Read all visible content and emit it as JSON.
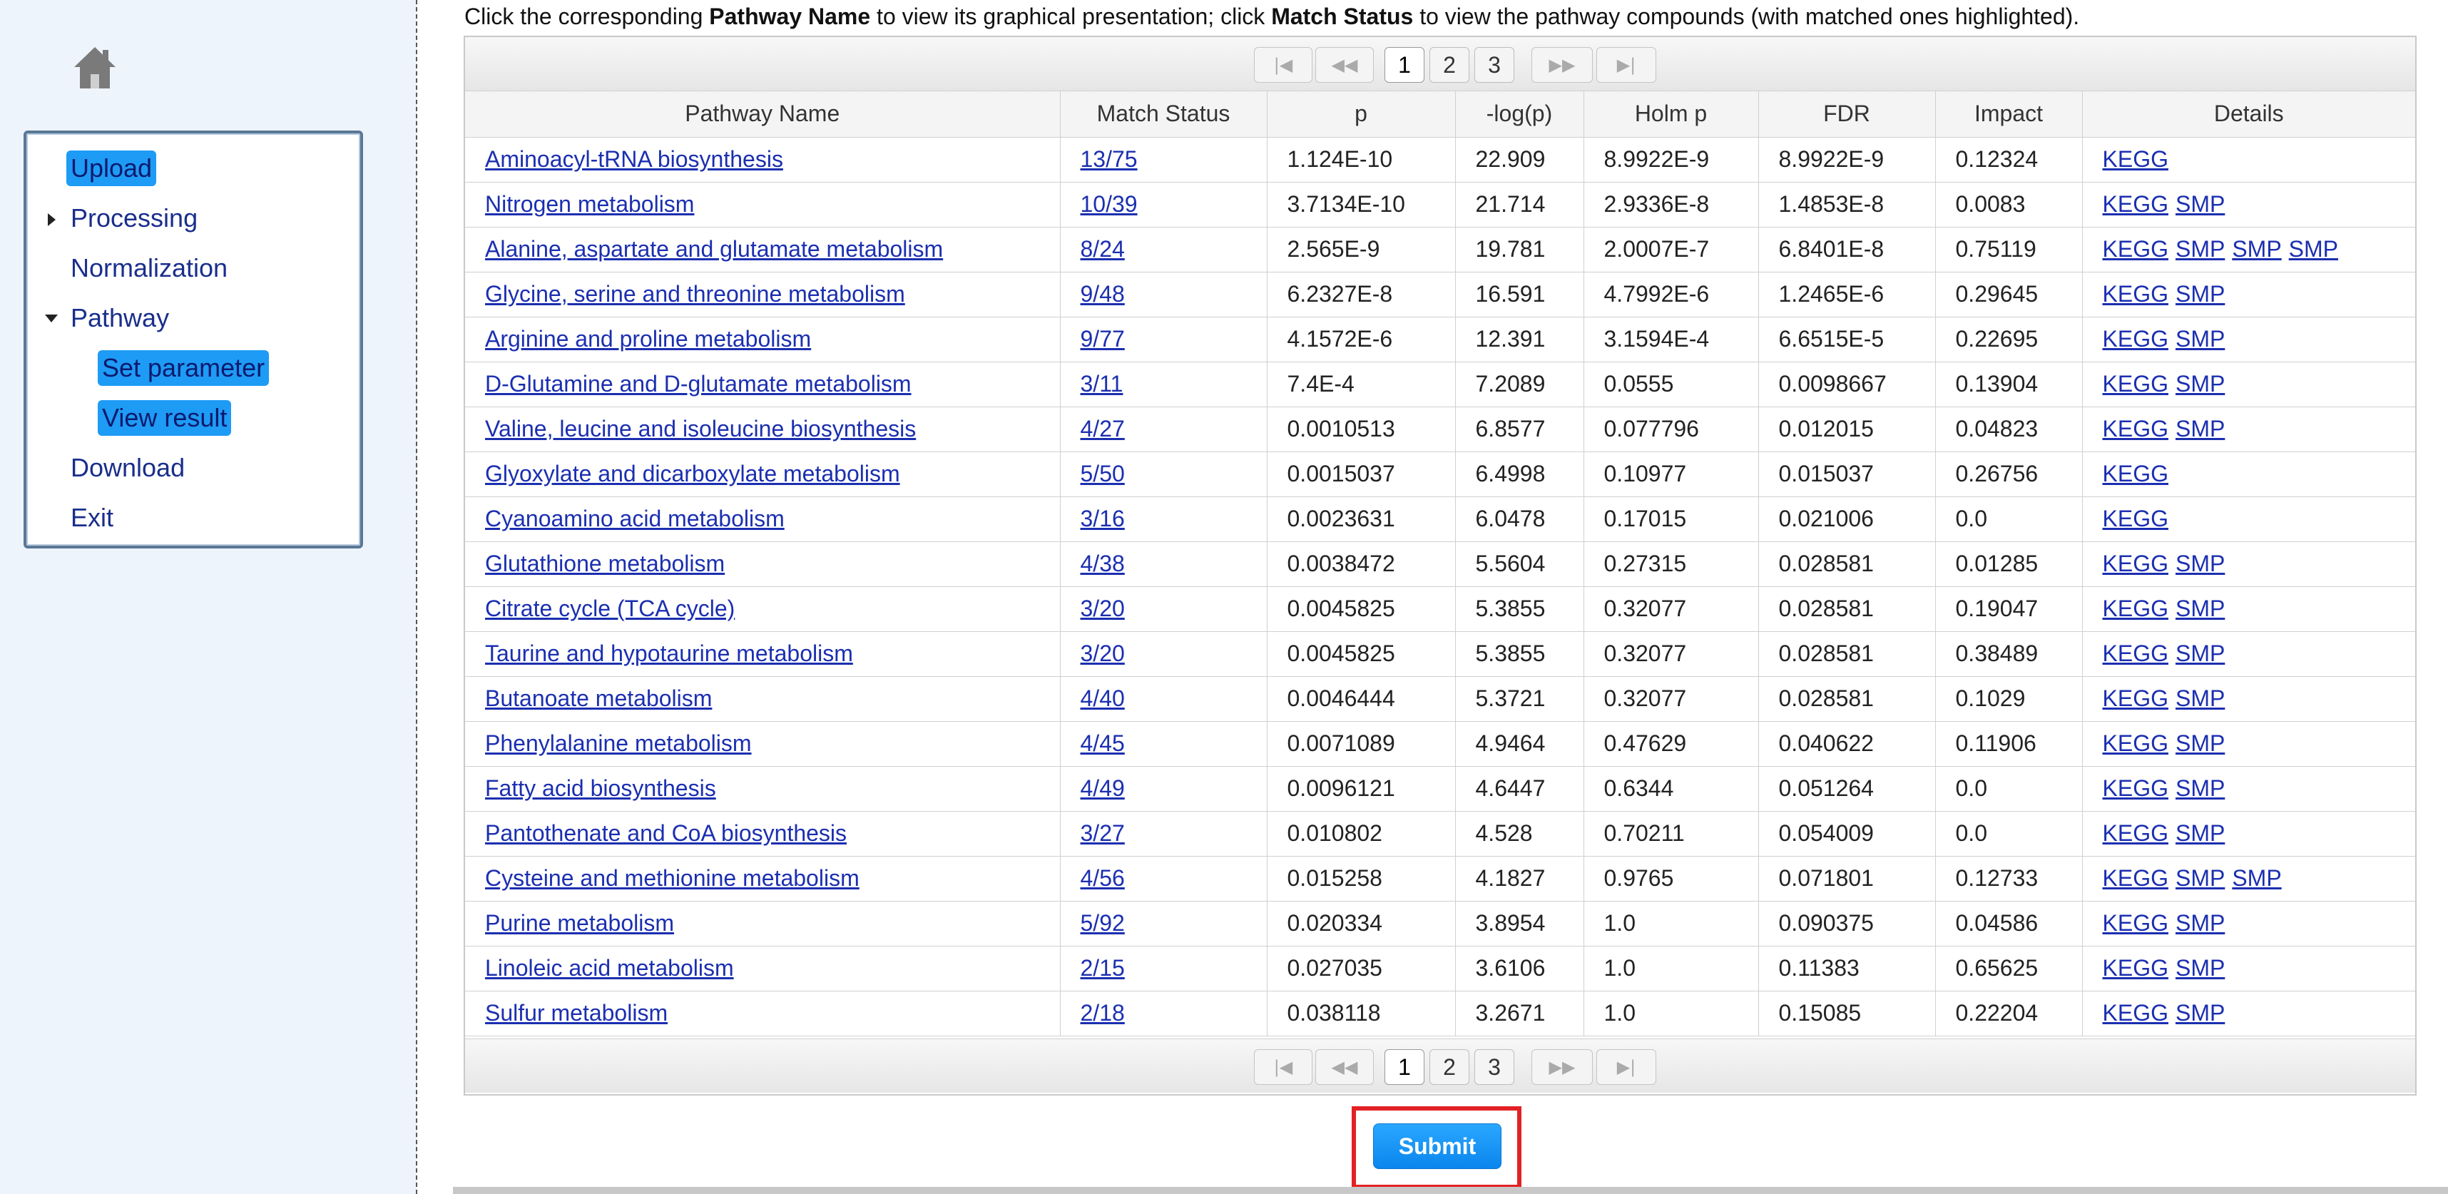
{
  "sidebar": {
    "items": [
      {
        "label": "Upload",
        "selected": true
      },
      {
        "label": "Processing",
        "expander": "collapsed"
      },
      {
        "label": "Normalization"
      },
      {
        "label": "Pathway",
        "expander": "expanded"
      },
      {
        "label": "Set parameter",
        "selected": true
      },
      {
        "label": "View result",
        "selected": true
      },
      {
        "label": "Download"
      },
      {
        "label": "Exit"
      }
    ]
  },
  "instructions": {
    "t1": "Click the corresponding ",
    "b1": "Pathway Name",
    "t2": " to view its graphical presentation; click ",
    "b2": "Match Status",
    "t3": " to view the pathway compounds (with matched ones highlighted)."
  },
  "pager": {
    "pages": [
      "1",
      "2",
      "3"
    ],
    "current": "1"
  },
  "table": {
    "headers": [
      "Pathway Name",
      "Match Status",
      "p",
      "-log(p)",
      "Holm p",
      "FDR",
      "Impact",
      "Details"
    ],
    "rows": [
      {
        "name": "Aminoacyl-tRNA biosynthesis",
        "match": "13/75",
        "p": "1.124E-10",
        "logp": "22.909",
        "holm": "8.9922E-9",
        "fdr": "8.9922E-9",
        "impact": "0.12324",
        "details": [
          "KEGG"
        ]
      },
      {
        "name": "Nitrogen metabolism",
        "match": "10/39",
        "p": "3.7134E-10",
        "logp": "21.714",
        "holm": "2.9336E-8",
        "fdr": "1.4853E-8",
        "impact": "0.0083",
        "details": [
          "KEGG",
          "SMP"
        ]
      },
      {
        "name": "Alanine, aspartate and glutamate metabolism",
        "match": "8/24",
        "p": "2.565E-9",
        "logp": "19.781",
        "holm": "2.0007E-7",
        "fdr": "6.8401E-8",
        "impact": "0.75119",
        "details": [
          "KEGG",
          "SMP",
          "SMP",
          "SMP"
        ]
      },
      {
        "name": "Glycine, serine and threonine metabolism",
        "match": "9/48",
        "p": "6.2327E-8",
        "logp": "16.591",
        "holm": "4.7992E-6",
        "fdr": "1.2465E-6",
        "impact": "0.29645",
        "details": [
          "KEGG",
          "SMP"
        ]
      },
      {
        "name": "Arginine and proline metabolism",
        "match": "9/77",
        "p": "4.1572E-6",
        "logp": "12.391",
        "holm": "3.1594E-4",
        "fdr": "6.6515E-5",
        "impact": "0.22695",
        "details": [
          "KEGG",
          "SMP"
        ]
      },
      {
        "name": "D-Glutamine and D-glutamate metabolism",
        "match": "3/11",
        "p": "7.4E-4",
        "logp": "7.2089",
        "holm": "0.0555",
        "fdr": "0.0098667",
        "impact": "0.13904",
        "details": [
          "KEGG",
          "SMP"
        ]
      },
      {
        "name": "Valine, leucine and isoleucine biosynthesis",
        "match": "4/27",
        "p": "0.0010513",
        "logp": "6.8577",
        "holm": "0.077796",
        "fdr": "0.012015",
        "impact": "0.04823",
        "details": [
          "KEGG",
          "SMP"
        ]
      },
      {
        "name": "Glyoxylate and dicarboxylate metabolism",
        "match": "5/50",
        "p": "0.0015037",
        "logp": "6.4998",
        "holm": "0.10977",
        "fdr": "0.015037",
        "impact": "0.26756",
        "details": [
          "KEGG"
        ]
      },
      {
        "name": "Cyanoamino acid metabolism",
        "match": "3/16",
        "p": "0.0023631",
        "logp": "6.0478",
        "holm": "0.17015",
        "fdr": "0.021006",
        "impact": "0.0",
        "details": [
          "KEGG"
        ]
      },
      {
        "name": "Glutathione metabolism",
        "match": "4/38",
        "p": "0.0038472",
        "logp": "5.5604",
        "holm": "0.27315",
        "fdr": "0.028581",
        "impact": "0.01285",
        "details": [
          "KEGG",
          "SMP"
        ]
      },
      {
        "name": "Citrate cycle (TCA cycle)",
        "match": "3/20",
        "p": "0.0045825",
        "logp": "5.3855",
        "holm": "0.32077",
        "fdr": "0.028581",
        "impact": "0.19047",
        "details": [
          "KEGG",
          "SMP"
        ]
      },
      {
        "name": "Taurine and hypotaurine metabolism",
        "match": "3/20",
        "p": "0.0045825",
        "logp": "5.3855",
        "holm": "0.32077",
        "fdr": "0.028581",
        "impact": "0.38489",
        "details": [
          "KEGG",
          "SMP"
        ]
      },
      {
        "name": "Butanoate metabolism",
        "match": "4/40",
        "p": "0.0046444",
        "logp": "5.3721",
        "holm": "0.32077",
        "fdr": "0.028581",
        "impact": "0.1029",
        "details": [
          "KEGG",
          "SMP"
        ]
      },
      {
        "name": "Phenylalanine metabolism",
        "match": "4/45",
        "p": "0.0071089",
        "logp": "4.9464",
        "holm": "0.47629",
        "fdr": "0.040622",
        "impact": "0.11906",
        "details": [
          "KEGG",
          "SMP"
        ]
      },
      {
        "name": "Fatty acid biosynthesis",
        "match": "4/49",
        "p": "0.0096121",
        "logp": "4.6447",
        "holm": "0.6344",
        "fdr": "0.051264",
        "impact": "0.0",
        "details": [
          "KEGG",
          "SMP"
        ]
      },
      {
        "name": "Pantothenate and CoA biosynthesis",
        "match": "3/27",
        "p": "0.010802",
        "logp": "4.528",
        "holm": "0.70211",
        "fdr": "0.054009",
        "impact": "0.0",
        "details": [
          "KEGG",
          "SMP"
        ]
      },
      {
        "name": "Cysteine and methionine metabolism",
        "match": "4/56",
        "p": "0.015258",
        "logp": "4.1827",
        "holm": "0.9765",
        "fdr": "0.071801",
        "impact": "0.12733",
        "details": [
          "KEGG",
          "SMP",
          "SMP"
        ]
      },
      {
        "name": "Purine metabolism",
        "match": "5/92",
        "p": "0.020334",
        "logp": "3.8954",
        "holm": "1.0",
        "fdr": "0.090375",
        "impact": "0.04586",
        "details": [
          "KEGG",
          "SMP"
        ]
      },
      {
        "name": "Linoleic acid metabolism",
        "match": "2/15",
        "p": "0.027035",
        "logp": "3.6106",
        "holm": "1.0",
        "fdr": "0.11383",
        "impact": "0.65625",
        "details": [
          "KEGG",
          "SMP"
        ]
      },
      {
        "name": "Sulfur metabolism",
        "match": "2/18",
        "p": "0.038118",
        "logp": "3.2671",
        "holm": "1.0",
        "fdr": "0.15085",
        "impact": "0.22204",
        "details": [
          "KEGG",
          "SMP"
        ]
      }
    ]
  },
  "submit": {
    "label": "Submit"
  },
  "colors": {
    "accent": "#1e9bf5",
    "link": "#1b2fb0",
    "highlight": "#e32124",
    "sidebar_bg": "#eef4fb"
  }
}
